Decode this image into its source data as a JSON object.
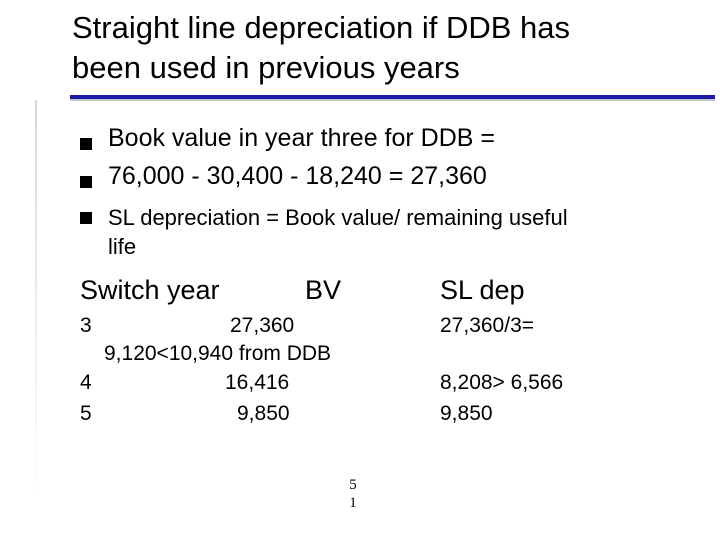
{
  "title": {
    "line1": "Straight line depreciation if DDB has",
    "line2": "been used in previous years"
  },
  "bullets": [
    {
      "text": "Book value in year three for DDB ="
    },
    {
      "text": "76,000 - 30,400 - 18,240 = 27,360"
    },
    {
      "text": "SL depreciation = Book value/ remaining useful"
    }
  ],
  "bullet_continuation": "life",
  "table": {
    "headers": [
      "Switch year",
      "BV",
      "SL dep"
    ],
    "rows": [
      {
        "year": "3",
        "bv": "27,360",
        "sl": "27,360/3="
      },
      {
        "year": "",
        "bv": "9,120<10,940 from DDB",
        "sl": ""
      },
      {
        "year": "4",
        "bv": "16,416",
        "sl": "8,208> 6,566"
      },
      {
        "year": "5",
        "bv": "9,850",
        "sl": "9,850"
      }
    ]
  },
  "page_number": {
    "line1": "5",
    "line2": "1"
  },
  "colors": {
    "accent_rule": "#1a1aa6",
    "secondary_rule": "#c4c4c4",
    "text": "#000000"
  }
}
